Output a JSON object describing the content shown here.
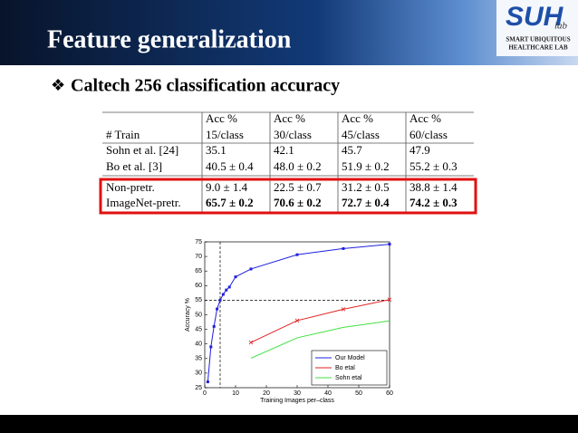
{
  "header": {
    "title": "Feature generalization",
    "logo": "SUH",
    "logo_sub": "lab",
    "lab": [
      "SMART UBIQUITOUS",
      "HEALTHCARE LAB"
    ]
  },
  "bullet": {
    "marker": "❖",
    "text": "Caltech 256 classification accuracy"
  },
  "table": {
    "row_header": "# Train",
    "columns": [
      {
        "top": "Acc %",
        "bottom": "15/class"
      },
      {
        "top": "Acc %",
        "bottom": "30/class"
      },
      {
        "top": "Acc %",
        "bottom": "45/class"
      },
      {
        "top": "Acc %",
        "bottom": "60/class"
      }
    ],
    "rows": [
      [
        "Sohn et al. [24]",
        "35.1",
        "42.1",
        "45.7",
        "47.9"
      ],
      [
        "Bo et al. [3]",
        "40.5 ± 0.4",
        "48.0 ± 0.2",
        "51.9 ± 0.2",
        "55.2 ± 0.3"
      ],
      [
        "Non-pretr.",
        "9.0 ± 1.4",
        "22.5 ± 0.7",
        "31.2 ± 0.5",
        "38.8 ± 1.4"
      ],
      [
        "ImageNet-pretr.",
        "65.7 ± 0.2",
        "70.6 ± 0.2",
        "72.7 ± 0.4",
        "74.2 ± 0.3"
      ]
    ],
    "highlight_rows": [
      2,
      3
    ],
    "bold_rows": [
      3
    ]
  },
  "chart_data": {
    "type": "line",
    "xlabel": "Training Images per–class",
    "ylabel": "Accuracy %",
    "xlim": [
      0,
      60
    ],
    "xticks": [
      0,
      10,
      20,
      30,
      40,
      50,
      60
    ],
    "ylim": [
      25,
      75
    ],
    "yticks": [
      25,
      30,
      35,
      40,
      45,
      50,
      55,
      60,
      65,
      70,
      75
    ],
    "hlines": [
      55
    ],
    "vlines": [
      5
    ],
    "legend": "lower right",
    "series": [
      {
        "name": "Our Model",
        "color": "#1f1fe0",
        "marker": "square",
        "x": [
          1,
          2,
          3,
          4,
          5,
          6,
          7,
          8,
          10,
          15,
          30,
          45,
          60
        ],
        "values": [
          27,
          39,
          46,
          52,
          55,
          57,
          58.5,
          59.5,
          63,
          65.7,
          70.6,
          72.7,
          74.2
        ]
      },
      {
        "name": "Bo etal",
        "color": "#e02020",
        "marker": "x",
        "x": [
          15,
          30,
          45,
          60
        ],
        "values": [
          40.5,
          48.0,
          51.9,
          55.2
        ]
      },
      {
        "name": "Sohn etal",
        "color": "#40e040",
        "marker": "none",
        "x": [
          15,
          30,
          45,
          60
        ],
        "values": [
          35.1,
          42.1,
          45.7,
          47.9
        ]
      }
    ]
  }
}
